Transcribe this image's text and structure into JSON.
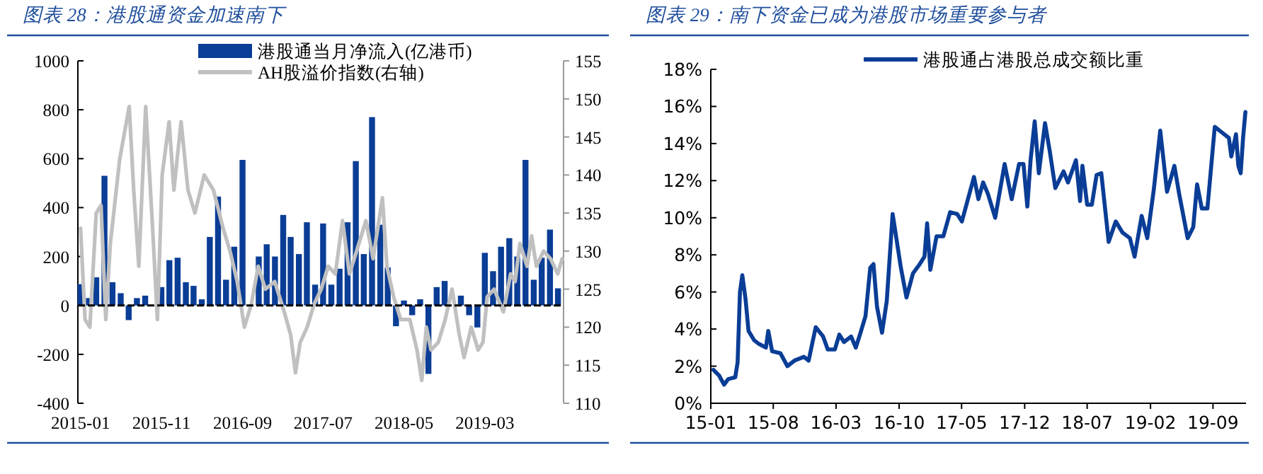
{
  "chart_data": [
    {
      "type": "bar",
      "title": "图表 28：港股通资金加速南下",
      "x": [
        "2015-01",
        "2015-02",
        "2015-03",
        "2015-04",
        "2015-05",
        "2015-06",
        "2015-07",
        "2015-08",
        "2015-09",
        "2015-10",
        "2015-11",
        "2015-12",
        "2016-01",
        "2016-02",
        "2016-03",
        "2016-04",
        "2016-05",
        "2016-06",
        "2016-07",
        "2016-08",
        "2016-09",
        "2016-10",
        "2016-11",
        "2016-12",
        "2017-01",
        "2017-02",
        "2017-03",
        "2017-04",
        "2017-05",
        "2017-06",
        "2017-07",
        "2017-08",
        "2017-09",
        "2017-10",
        "2017-11",
        "2017-12",
        "2018-01",
        "2018-02",
        "2018-03",
        "2018-04",
        "2018-05",
        "2018-06",
        "2018-07",
        "2018-08",
        "2018-09",
        "2018-10",
        "2018-11",
        "2018-12",
        "2019-01",
        "2019-02",
        "2019-03",
        "2019-04",
        "2019-05",
        "2019-06",
        "2019-07",
        "2019-08",
        "2019-09",
        "2019-10",
        "2019-11",
        "2019-12"
      ],
      "series": [
        {
          "name": "港股通当月净流入(亿港币)",
          "color": "#0a3d96",
          "values": [
            87,
            30,
            115,
            530,
            95,
            50,
            -60,
            30,
            40,
            null,
            75,
            185,
            195,
            95,
            80,
            25,
            280,
            445,
            105,
            240,
            595,
            null,
            200,
            250,
            200,
            370,
            280,
            210,
            340,
            85,
            335,
            85,
            150,
            340,
            590,
            210,
            770,
            330,
            155,
            -85,
            20,
            -40,
            25,
            -280,
            75,
            100,
            0,
            40,
            -40,
            -90,
            215,
            140,
            240,
            275,
            200,
            595,
            105,
            195,
            310,
            70
          ]
        },
        {
          "name": "AH股溢价指数(右轴)",
          "type": "line",
          "axis": "y2",
          "color": "#c0c0c0",
          "x": [
            "2015-01-01",
            "2015-01-18",
            "2015-02-05",
            "2015-03-01",
            "2015-03-19",
            "2015-04-06",
            "2015-04-23",
            "2015-05-28",
            "2015-07-03",
            "2015-07-20",
            "2015-08-08",
            "2015-09-03",
            "2015-09-29",
            "2015-10-17",
            "2015-11-04",
            "2015-11-30",
            "2015-12-18",
            "2016-01-14",
            "2016-02-09",
            "2016-03-06",
            "2016-04-10",
            "2016-05-15",
            "2016-06-20",
            "2016-07-16",
            "2016-08-12",
            "2016-09-08",
            "2016-10-04",
            "2016-10-30",
            "2016-11-26",
            "2016-12-31",
            "2017-02-05",
            "2017-03-01",
            "2017-03-19",
            "2017-04-06",
            "2017-05-02",
            "2017-05-28",
            "2017-06-24",
            "2017-07-20",
            "2017-08-16",
            "2017-09-12",
            "2017-10-08",
            "2017-11-04",
            "2017-12-09",
            "2018-01-05",
            "2018-02-09",
            "2018-02-26",
            "2018-03-23",
            "2018-04-19",
            "2018-05-23",
            "2018-06-19",
            "2018-07-07",
            "2018-07-24",
            "2018-08-11",
            "2018-09-07",
            "2018-10-03",
            "2018-10-29",
            "2018-11-25",
            "2018-12-13",
            "2019-01-09",
            "2019-02-04",
            "2019-02-22",
            "2019-03-10",
            "2019-04-05",
            "2019-05-10",
            "2019-06-06",
            "2019-06-23",
            "2019-07-11",
            "2019-08-07",
            "2019-08-24",
            "2019-09-11",
            "2019-10-08",
            "2019-11-03",
            "2019-11-30",
            "2019-12-17"
          ],
          "values": [
            133,
            121,
            120,
            135,
            136,
            121,
            131,
            142,
            149,
            138,
            128,
            149,
            133,
            121,
            140,
            147,
            138,
            147,
            138,
            135,
            140,
            138,
            133,
            130,
            126,
            120,
            123,
            128,
            125,
            126,
            122,
            119,
            114,
            118,
            120,
            123,
            125,
            128,
            127,
            134,
            127,
            130,
            134,
            129,
            137,
            128,
            124,
            121,
            121,
            117,
            113,
            120,
            117,
            118,
            121,
            125,
            119,
            116,
            120,
            117,
            118,
            124,
            125,
            122,
            127,
            126,
            131,
            128,
            132,
            128,
            130,
            129,
            127,
            129
          ]
        }
      ],
      "xlim": [
        "2014-12-22",
        "2019-12-22"
      ],
      "xticks": [
        "2015-01",
        "2015-11",
        "2016-09",
        "2017-07",
        "2018-05",
        "2019-03"
      ],
      "ylim": [
        -400,
        1000
      ],
      "yticks": [
        -400,
        -200,
        0,
        200,
        400,
        600,
        800,
        1000
      ],
      "y2lim": [
        110,
        155
      ],
      "y2ticks": [
        110,
        115,
        120,
        125,
        130,
        135,
        140,
        145,
        150,
        155
      ],
      "ref_lines": [
        {
          "axis": "y",
          "value": 0,
          "color": "#000000",
          "line_style": "dashed"
        }
      ],
      "legend": "top",
      "grid": false
    },
    {
      "type": "line",
      "title": "图表 29：南下资金已成为港股市场重要参与者",
      "series": [
        {
          "name": "港股通占港股总成交额比重",
          "color": "#0a3d96",
          "x": [
            "2015-01-10",
            "2015-01-29",
            "2015-02-15",
            "2015-03-01",
            "2015-03-25",
            "2015-04-02",
            "2015-04-10",
            "2015-04-18",
            "2015-04-29",
            "2015-05-09",
            "2015-05-28",
            "2015-06-13",
            "2015-07-07",
            "2015-07-15",
            "2015-07-28",
            "2015-08-25",
            "2015-09-18",
            "2015-10-12",
            "2015-11-13",
            "2015-11-29",
            "2015-12-23",
            "2016-01-17",
            "2016-02-02",
            "2016-02-26",
            "2016-03-12",
            "2016-03-28",
            "2016-04-21",
            "2016-05-07",
            "2016-05-23",
            "2016-06-09",
            "2016-06-25",
            "2016-07-06",
            "2016-07-18",
            "2016-08-04",
            "2016-08-20",
            "2016-09-09",
            "2016-10-07",
            "2016-10-26",
            "2016-11-17",
            "2016-12-10",
            "2016-12-26",
            "2017-01-04",
            "2017-01-15",
            "2017-02-05",
            "2017-02-28",
            "2017-03-23",
            "2017-04-16",
            "2017-05-02",
            "2017-06-12",
            "2017-06-27",
            "2017-07-13",
            "2017-07-29",
            "2017-08-23",
            "2017-09-24",
            "2017-10-18",
            "2017-11-12",
            "2017-11-27",
            "2017-12-10",
            "2017-12-21",
            "2018-01-04",
            "2018-01-18",
            "2018-02-08",
            "2018-02-24",
            "2018-03-15",
            "2018-04-12",
            "2018-04-27",
            "2018-05-24",
            "2018-06-07",
            "2018-06-15",
            "2018-07-01",
            "2018-07-17",
            "2018-08-02",
            "2018-08-18",
            "2018-09-12",
            "2018-10-06",
            "2018-10-29",
            "2018-11-23",
            "2018-12-09",
            "2019-01-02",
            "2019-01-21",
            "2019-02-12",
            "2019-03-06",
            "2019-03-29",
            "2019-04-23",
            "2019-05-09",
            "2019-06-07",
            "2019-06-26",
            "2019-07-09",
            "2019-07-25",
            "2019-08-13",
            "2019-09-07",
            "2019-10-01",
            "2019-10-25",
            "2019-11-02",
            "2019-11-18",
            "2019-11-26",
            "2019-12-04",
            "2019-12-12",
            "2019-12-20"
          ],
          "values": [
            1.8,
            1.5,
            1.0,
            1.3,
            1.4,
            2.2,
            6.0,
            6.9,
            5.6,
            3.9,
            3.4,
            3.2,
            3.0,
            3.9,
            2.8,
            2.7,
            2.0,
            2.3,
            2.5,
            2.3,
            4.1,
            3.6,
            2.9,
            2.9,
            3.7,
            3.3,
            3.6,
            3.0,
            3.8,
            4.7,
            7.3,
            7.5,
            5.2,
            3.8,
            5.5,
            10.2,
            7.3,
            5.7,
            7.0,
            7.5,
            7.9,
            9.7,
            7.2,
            9.0,
            9.0,
            10.3,
            10.2,
            9.8,
            12.2,
            11.0,
            11.9,
            11.3,
            10.0,
            12.9,
            11.0,
            12.9,
            12.9,
            10.6,
            13.1,
            15.2,
            12.4,
            15.1,
            13.6,
            11.6,
            12.5,
            11.9,
            13.1,
            10.9,
            12.8,
            10.7,
            10.7,
            12.3,
            12.4,
            8.7,
            9.8,
            9.2,
            8.9,
            7.9,
            10.1,
            8.9,
            11.5,
            14.7,
            11.4,
            12.8,
            11.3,
            8.9,
            9.5,
            11.8,
            10.5,
            10.5,
            14.9,
            14.6,
            14.3,
            13.3,
            14.5,
            12.8,
            12.4,
            14.3,
            15.7
          ]
        }
      ],
      "xlim": [
        "2015-01-01",
        "2019-12-22"
      ],
      "xticks": [
        {
          "value": "2015-01",
          "label": "15-01"
        },
        {
          "value": "2015-08",
          "label": "15-08"
        },
        {
          "value": "2016-03",
          "label": "16-03"
        },
        {
          "value": "2016-10",
          "label": "16-10"
        },
        {
          "value": "2017-05",
          "label": "17-05"
        },
        {
          "value": "2017-12",
          "label": "17-12"
        },
        {
          "value": "2018-07",
          "label": "18-07"
        },
        {
          "value": "2019-02",
          "label": "19-02"
        },
        {
          "value": "2019-09",
          "label": "19-09"
        }
      ],
      "ylim": [
        0,
        18
      ],
      "yticks": [
        {
          "value": 0,
          "label": "0%"
        },
        {
          "value": 2,
          "label": "2%"
        },
        {
          "value": 4,
          "label": "4%"
        },
        {
          "value": 6,
          "label": "6%"
        },
        {
          "value": 8,
          "label": "8%"
        },
        {
          "value": 10,
          "label": "10%"
        },
        {
          "value": 12,
          "label": "12%"
        },
        {
          "value": 14,
          "label": "14%"
        },
        {
          "value": 16,
          "label": "16%"
        },
        {
          "value": 18,
          "label": "18%"
        }
      ],
      "legend": "top",
      "grid": false
    }
  ]
}
